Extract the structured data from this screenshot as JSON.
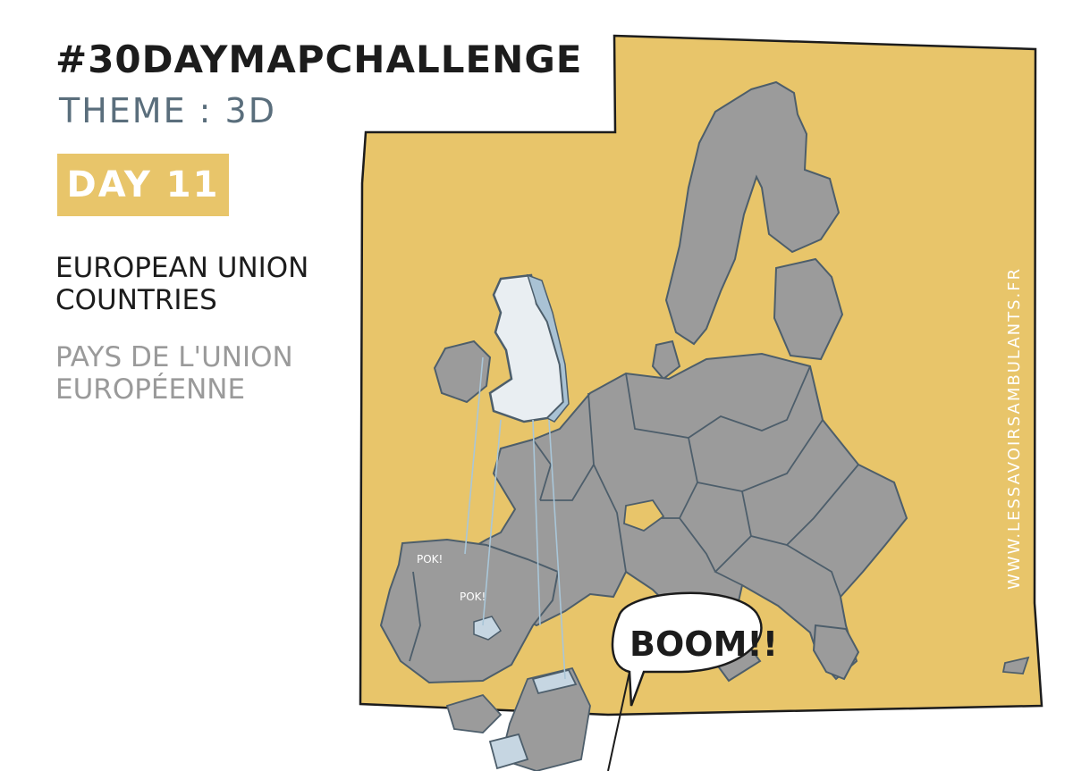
{
  "header": {
    "title": "#30DAYMAPCHALLENGE",
    "theme": "THEME : 3D",
    "day": "DAY 11"
  },
  "subtitle": {
    "english": "EUROPEAN UNION COUNTRIES",
    "french": "PAYS DE L'UNION EUROPÉENNE"
  },
  "map": {
    "background_color": "#e8c56a",
    "country_color": "#9b9b9b",
    "uk_color": "#e9eef2",
    "website": "WWW.LESSAVOIRSAMBULANTS.FR",
    "sound_effects": [
      "POK!",
      "POK!"
    ],
    "speech_bubble": "BOOM!!"
  }
}
